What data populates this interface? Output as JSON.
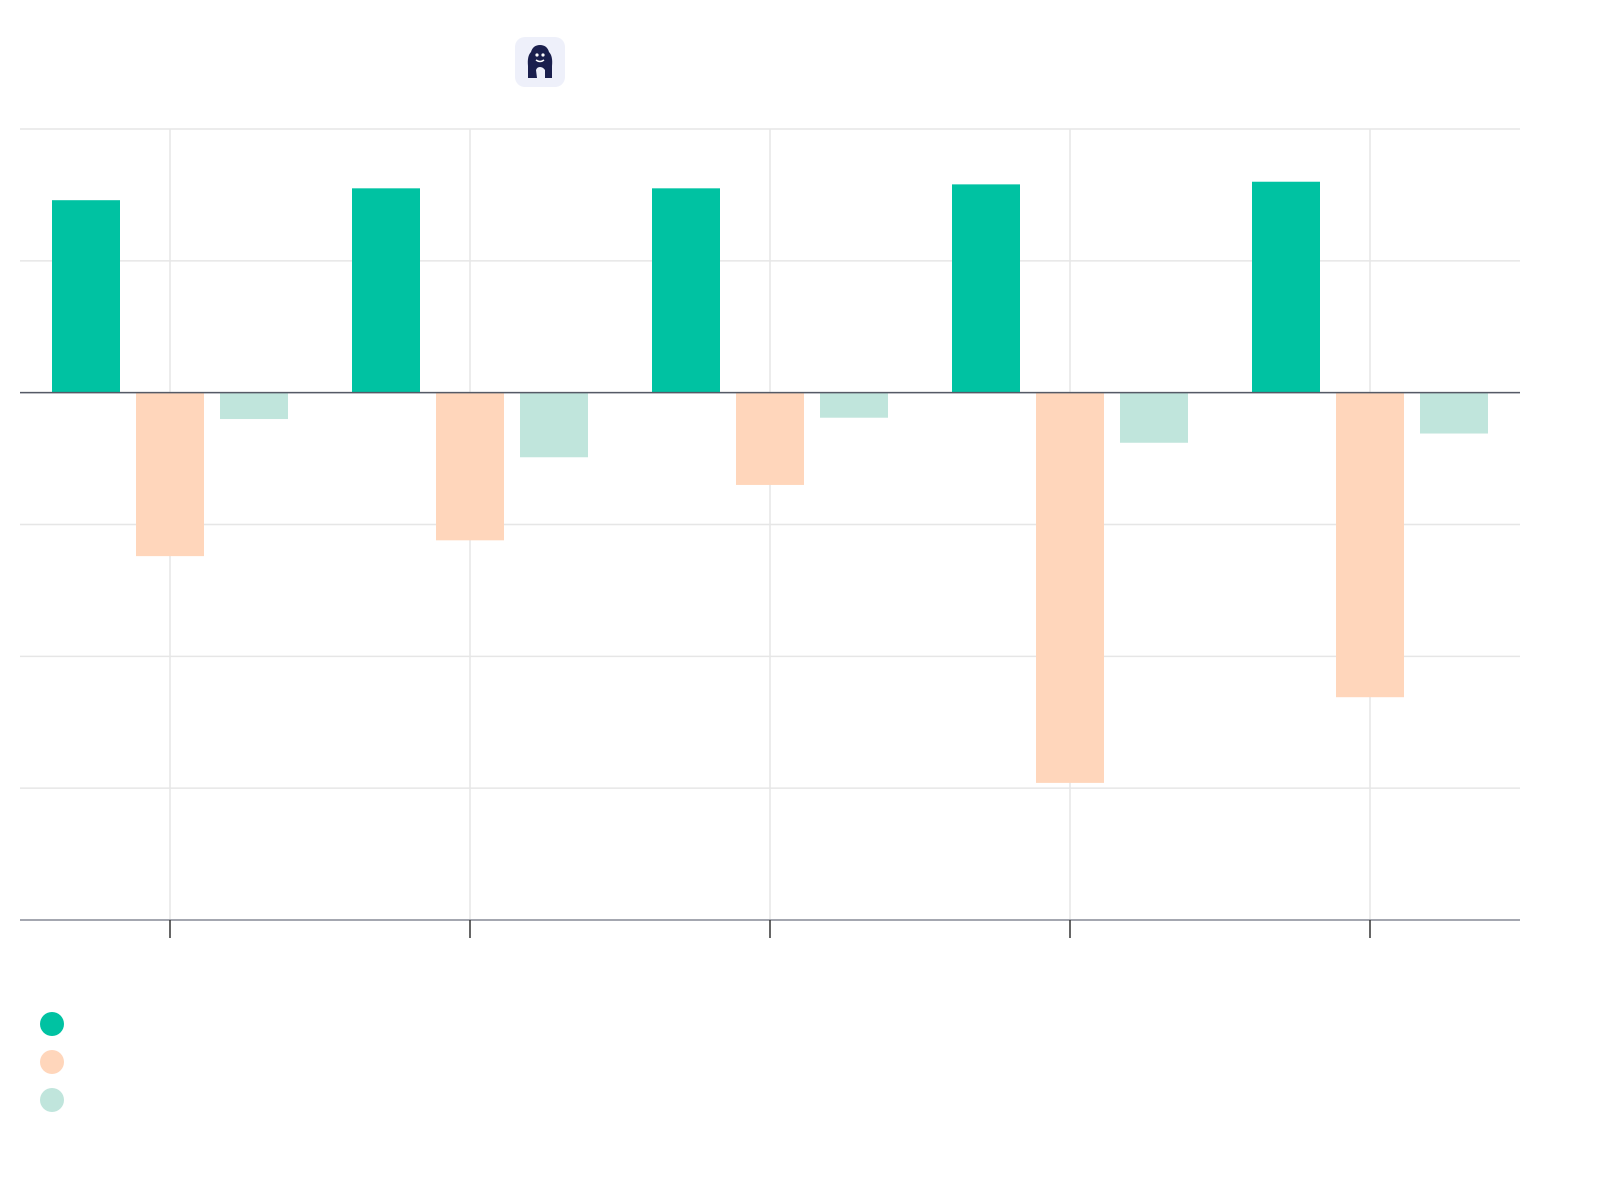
{
  "chart_data": {
    "type": "bar",
    "categories": [
      "",
      "",
      "",
      "",
      ""
    ],
    "series": [
      {
        "color": "#00c2a2",
        "values": [
          73,
          77.5,
          77.5,
          79,
          80
        ]
      },
      {
        "color": "#ffd6bb",
        "values": [
          -62,
          -56,
          -35,
          -148,
          -115.5
        ]
      },
      {
        "color": "#c0e5dc",
        "values": [
          -10,
          -24.5,
          -9.5,
          -19,
          -15.5
        ]
      }
    ],
    "ylim": [
      -200,
      100
    ],
    "grid": true,
    "legend_position": "bottom-left"
  },
  "logo": {
    "icon": "gorilla-logo-icon"
  }
}
